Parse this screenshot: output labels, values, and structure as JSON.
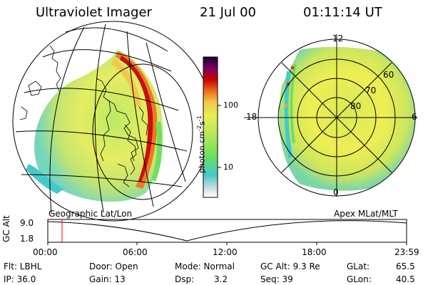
{
  "header": {
    "title": "Ultraviolet Imager",
    "date": "21 Jul 00",
    "time": "01:11:14 UT"
  },
  "panels": {
    "left_caption": "Geographic Lat/Lon",
    "right_caption": "Apex MLat/MLT"
  },
  "colorbar": {
    "unit_label": "photon cm",
    "unit_exp1": "-2",
    "unit_s": "s",
    "unit_exp2": "-1",
    "ticks": [
      "100",
      "10"
    ],
    "scale": "log"
  },
  "polar_labels": {
    "mlt": [
      "12",
      "18",
      "6",
      "0"
    ],
    "mlat": [
      "60",
      "70",
      "80"
    ]
  },
  "alt_chart": {
    "ylabel": "GC Alt",
    "y_ticks": [
      "9.0",
      "1.8"
    ],
    "x_ticks": [
      "00:00",
      "06:00",
      "12:00",
      "18:00",
      "23:59"
    ]
  },
  "status": {
    "flt": "Flt: LBHL",
    "ip": "IP: 36.0",
    "door": "Door: Open",
    "gain": "Gain: 13",
    "mode": "Mode: Normal",
    "dsp": "Dsp:",
    "dsp_val": "3.2",
    "gcalt": "GC Alt: 9.3 Re",
    "seq": "Seq: 39",
    "glat": "GLat:",
    "glat_val": "65.5",
    "glon": "GLon:",
    "glon_val": "40.5"
  },
  "colors": {
    "bar": [
      "#ffffff",
      "#bcd6dc",
      "#44c9c9",
      "#6ee05c",
      "#b8e85c",
      "#e8ee52",
      "#f2c84a",
      "#ee6a1a",
      "#c80000",
      "#7a0060",
      "#140030"
    ]
  }
}
